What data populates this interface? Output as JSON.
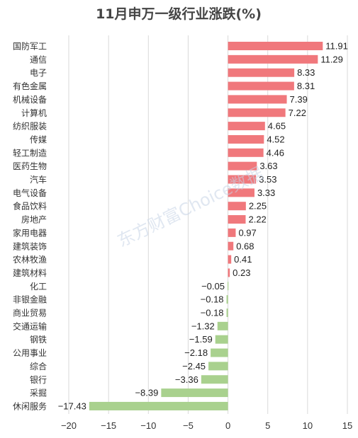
{
  "chart_data": {
    "type": "bar",
    "orientation": "horizontal",
    "title": "11月申万一级行业涨跌(%)",
    "categories": [
      "国防军工",
      "通信",
      "电子",
      "有色金属",
      "机械设备",
      "计算机",
      "纺织服装",
      "传媒",
      "轻工制造",
      "医药生物",
      "汽车",
      "电气设备",
      "食品饮料",
      "房地产",
      "家用电器",
      "建筑装饰",
      "农林牧渔",
      "建筑材料",
      "化工",
      "非银金融",
      "商业贸易",
      "交通运输",
      "钢铁",
      "公用事业",
      "综合",
      "银行",
      "采掘",
      "休闲服务"
    ],
    "values": [
      11.91,
      11.29,
      8.33,
      8.31,
      7.39,
      7.22,
      4.65,
      4.52,
      4.46,
      3.63,
      3.53,
      3.33,
      2.25,
      2.22,
      0.97,
      0.68,
      0.41,
      0.23,
      -0.05,
      -0.18,
      -0.18,
      -1.32,
      -1.59,
      -2.18,
      -2.45,
      -3.36,
      -8.39,
      -17.43
    ],
    "value_labels": [
      "11.91",
      "11.29",
      "8.33",
      "8.31",
      "7.39",
      "7.22",
      "4.65",
      "4.52",
      "4.46",
      "3.63",
      "3.53",
      "3.33",
      "2.25",
      "2.22",
      "0.97",
      "0.68",
      "0.41",
      "0.23",
      "−0.05",
      "−0.18",
      "−0.18",
      "−1.32",
      "−1.59",
      "−2.18",
      "−2.45",
      "−3.36",
      "−8.39",
      "−17.43"
    ],
    "xlim": [
      -20,
      15
    ],
    "xticks": [
      -20,
      -15,
      -10,
      -5,
      0,
      5,
      10,
      15
    ],
    "xtick_labels": [
      "−20",
      "−15",
      "−10",
      "−5",
      "0",
      "5",
      "10",
      "15"
    ],
    "grid": true,
    "colors": {
      "positive": "#f0787c",
      "negative": "#a9d18e"
    },
    "watermark": "东方财富Choice数据"
  }
}
